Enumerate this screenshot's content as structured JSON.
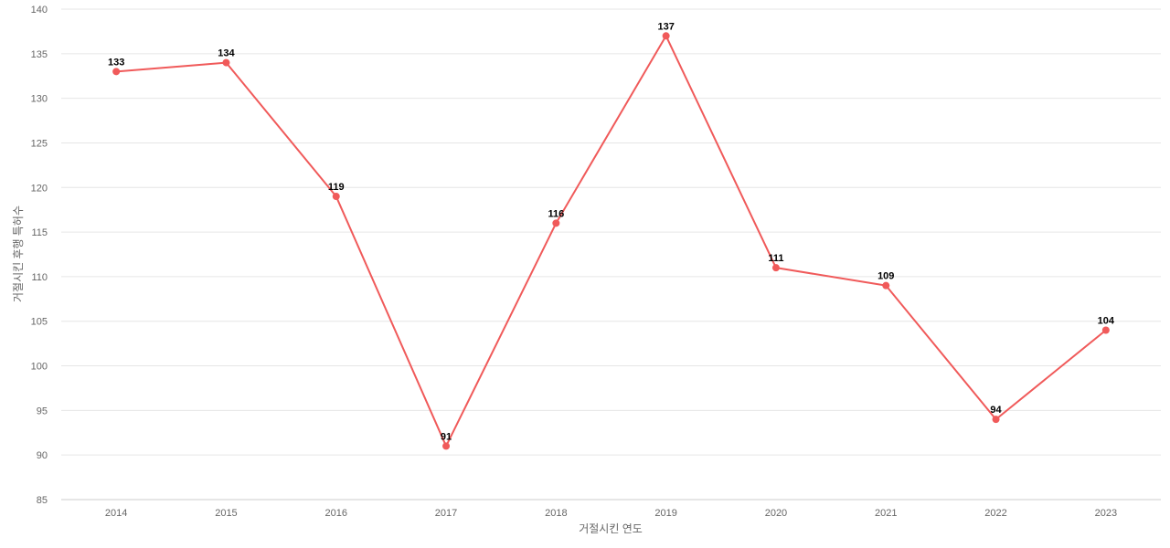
{
  "chart_data": {
    "type": "line",
    "title": "",
    "xlabel": "거절시킨 연도",
    "ylabel": "거절시킨 후행 특허수",
    "categories": [
      "2014",
      "2015",
      "2016",
      "2017",
      "2018",
      "2019",
      "2020",
      "2021",
      "2022",
      "2023"
    ],
    "series": [
      {
        "values": [
          133,
          134,
          119,
          91,
          116,
          137,
          111,
          109,
          94,
          104
        ],
        "color": "#f05a5a"
      }
    ],
    "ylim": [
      85,
      140
    ],
    "yticks": [
      "85",
      "90",
      "95",
      "100",
      "105",
      "110",
      "115",
      "120",
      "125",
      "130",
      "135",
      "140"
    ],
    "data_labels": [
      "133",
      "134",
      "119",
      "91",
      "116",
      "137",
      "111",
      "109",
      "94",
      "104"
    ],
    "grid": true,
    "legend": "none"
  }
}
